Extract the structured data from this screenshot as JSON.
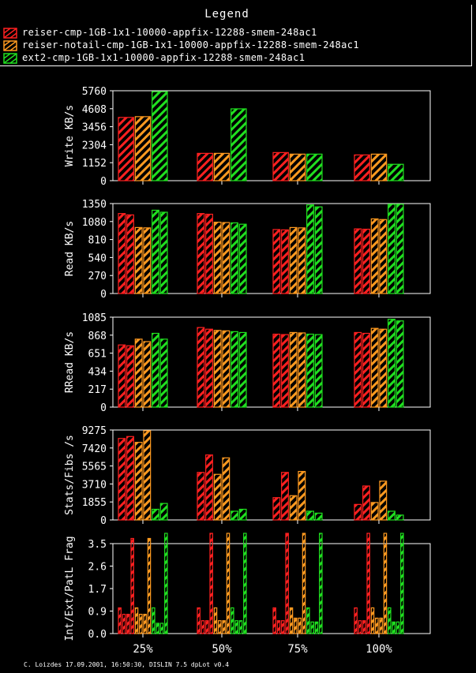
{
  "legend": {
    "title": "Legend",
    "entries": [
      {
        "label": "reiser-cmp-1GB-1x1-10000-appfix-12288-smem-248ac1",
        "color": "#ff2020"
      },
      {
        "label": "reiser-notail-cmp-1GB-1x1-10000-appfix-12288-smem-248ac1",
        "color": "#ff9a20"
      },
      {
        "label": "ext2-cmp-1GB-1x1-10000-appfix-12288-smem-248ac1",
        "color": "#20e020"
      }
    ]
  },
  "footer": "C. Loizdes 17.09.2001, 16:50:30, DISLIN 7.5 dpLot v0.4",
  "chart_data": [
    {
      "type": "bar",
      "ylabel": "Write KB/s",
      "ylim": [
        0,
        5760
      ],
      "yticks": [
        "0",
        "1152",
        "2304",
        "3456",
        "4608",
        "5760"
      ],
      "categories": [
        "25%",
        "50%",
        "75%",
        "100%"
      ],
      "series": [
        {
          "name": "reiser-cmp-1GB-1x1-10000-appfix-12288-smem-248ac1",
          "values": [
            [
              4050
            ],
            [
              1750
            ],
            [
              1800
            ],
            [
              1650
            ]
          ]
        },
        {
          "name": "reiser-notail-cmp-1GB-1x1-10000-appfix-12288-smem-248ac1",
          "values": [
            [
              4100
            ],
            [
              1750
            ],
            [
              1700
            ],
            [
              1700
            ]
          ]
        },
        {
          "name": "ext2-cmp-1GB-1x1-10000-appfix-12288-smem-248ac1",
          "values": [
            [
              5700
            ],
            [
              4600
            ],
            [
              1700
            ],
            [
              1050
            ]
          ]
        }
      ]
    },
    {
      "type": "bar",
      "ylabel": "Read KB/s",
      "ylim": [
        0,
        1350
      ],
      "yticks": [
        "0",
        "270",
        "540",
        "810",
        "1080",
        "1350"
      ],
      "categories": [
        "25%",
        "50%",
        "75%",
        "100%"
      ],
      "series": [
        {
          "name": "reiser-cmp-1GB-1x1-10000-appfix-12288-smem-248ac1",
          "values": [
            [
              1200,
              1180
            ],
            [
              1200,
              1190
            ],
            [
              960,
              955
            ],
            [
              970,
              965
            ]
          ]
        },
        {
          "name": "reiser-notail-cmp-1GB-1x1-10000-appfix-12288-smem-248ac1",
          "values": [
            [
              990,
              985
            ],
            [
              1070,
              1065
            ],
            [
              990,
              985
            ],
            [
              1120,
              1110
            ]
          ]
        },
        {
          "name": "ext2-cmp-1GB-1x1-10000-appfix-12288-smem-248ac1",
          "values": [
            [
              1250,
              1220
            ],
            [
              1060,
              1040
            ],
            [
              1330,
              1300
            ],
            [
              1340,
              1340
            ]
          ]
        }
      ]
    },
    {
      "type": "bar",
      "ylabel": "RRead KB/s",
      "ylim": [
        0,
        1085
      ],
      "yticks": [
        "0",
        "217",
        "434",
        "651",
        "868",
        "1085"
      ],
      "categories": [
        "25%",
        "50%",
        "75%",
        "100%"
      ],
      "series": [
        {
          "name": "reiser-cmp-1GB-1x1-10000-appfix-12288-smem-248ac1",
          "values": [
            [
              750,
              740
            ],
            [
              960,
              940
            ],
            [
              880,
              875
            ],
            [
              900,
              890
            ]
          ]
        },
        {
          "name": "reiser-notail-cmp-1GB-1x1-10000-appfix-12288-smem-248ac1",
          "values": [
            [
              820,
              790
            ],
            [
              925,
              920
            ],
            [
              900,
              895
            ],
            [
              950,
              940
            ]
          ]
        },
        {
          "name": "ext2-cmp-1GB-1x1-10000-appfix-12288-smem-248ac1",
          "values": [
            [
              890,
              820
            ],
            [
              910,
              900
            ],
            [
              880,
              875
            ],
            [
              1060,
              1040
            ]
          ]
        }
      ]
    },
    {
      "type": "bar",
      "ylabel": "Stats/Fibs /s",
      "ylim": [
        0,
        9275
      ],
      "yticks": [
        "0",
        "1855",
        "3710",
        "5565",
        "7420",
        "9275"
      ],
      "categories": [
        "25%",
        "50%",
        "75%",
        "100%"
      ],
      "series": [
        {
          "name": "reiser-cmp-1GB-1x1-10000-appfix-12288-smem-248ac1",
          "values": [
            [
              8400,
              8600
            ],
            [
              4900,
              6700
            ],
            [
              2300,
              4900
            ],
            [
              1600,
              3500
            ]
          ]
        },
        {
          "name": "reiser-notail-cmp-1GB-1x1-10000-appfix-12288-smem-248ac1",
          "values": [
            [
              8000,
              9200
            ],
            [
              4700,
              6400
            ],
            [
              2500,
              5000
            ],
            [
              1800,
              4000
            ]
          ]
        },
        {
          "name": "ext2-cmp-1GB-1x1-10000-appfix-12288-smem-248ac1",
          "values": [
            [
              1100,
              1700
            ],
            [
              900,
              1100
            ],
            [
              900,
              700
            ],
            [
              900,
              500
            ]
          ]
        }
      ]
    },
    {
      "type": "bar",
      "ylabel": "Int/Ext/PatL Frag",
      "ylim": [
        0,
        3.5
      ],
      "yticks": [
        "0.0",
        "0.9",
        "1.7",
        "2.6",
        "3.5"
      ],
      "categories": [
        "25%",
        "50%",
        "75%",
        "100%"
      ],
      "series": [
        {
          "name": "reiser-cmp-1GB-1x1-10000-appfix-12288-smem-248ac1",
          "values": [
            [
              1.0,
              0.75,
              0.75,
              3.7
            ],
            [
              1.0,
              0.5,
              0.5,
              3.9
            ],
            [
              1.0,
              0.5,
              0.5,
              3.9
            ],
            [
              1.0,
              0.5,
              0.5,
              3.9
            ]
          ]
        },
        {
          "name": "reiser-notail-cmp-1GB-1x1-10000-appfix-12288-smem-248ac1",
          "values": [
            [
              1.0,
              0.75,
              0.75,
              3.7
            ],
            [
              1.0,
              0.5,
              0.5,
              3.9
            ],
            [
              1.0,
              0.6,
              0.6,
              3.9
            ],
            [
              1.0,
              0.6,
              0.6,
              3.9
            ]
          ]
        },
        {
          "name": "ext2-cmp-1GB-1x1-10000-appfix-12288-smem-248ac1",
          "values": [
            [
              1.0,
              0.4,
              0.4,
              3.9
            ],
            [
              1.0,
              0.5,
              0.5,
              3.9
            ],
            [
              1.0,
              0.45,
              0.45,
              3.9
            ],
            [
              1.0,
              0.45,
              0.45,
              3.9
            ]
          ]
        }
      ]
    }
  ]
}
